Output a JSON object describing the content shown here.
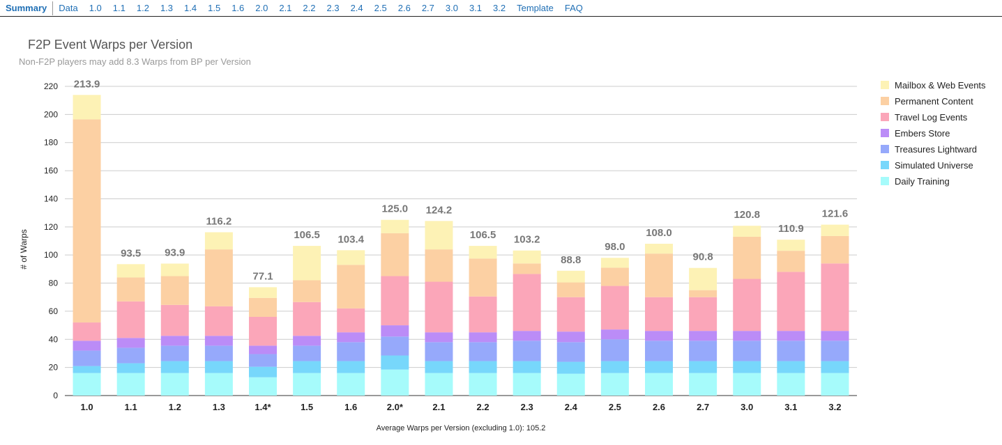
{
  "nav": {
    "tabs": [
      "Summary",
      "Data",
      "1.0",
      "1.1",
      "1.2",
      "1.3",
      "1.4",
      "1.5",
      "1.6",
      "2.0",
      "2.1",
      "2.2",
      "2.3",
      "2.4",
      "2.5",
      "2.6",
      "2.7",
      "3.0",
      "3.1",
      "3.2",
      "Template",
      "FAQ"
    ],
    "active": "Summary"
  },
  "colors": {
    "Daily Training": "#a6fbfb",
    "Simulated Universe": "#77d7fb",
    "Treasures Lightward": "#96a9fb",
    "Embers Store": "#bb8cf7",
    "Travel Log Events": "#fba6b9",
    "Permanent Content": "#fcd0a3",
    "Mailbox & Web Events": "#fdf2b5"
  },
  "chart_data": {
    "type": "bar",
    "stacked": true,
    "title": "F2P Event Warps per Version",
    "subtitle": "Non-F2P players may add 8.3 Warps from BP per Version",
    "ylabel": "# of Warps",
    "xlabel": "",
    "ylim": [
      0,
      220
    ],
    "yticks": [
      0,
      20,
      40,
      60,
      80,
      100,
      120,
      140,
      160,
      180,
      200,
      220
    ],
    "grid": true,
    "legend_position": "right",
    "categories": [
      "1.0",
      "1.1",
      "1.2",
      "1.3",
      "1.4*",
      "1.5",
      "1.6",
      "2.0*",
      "2.1",
      "2.2",
      "2.3",
      "2.4",
      "2.5",
      "2.6",
      "2.7",
      "3.0",
      "3.1",
      "3.2"
    ],
    "totals": [
      "213.9",
      "93.5",
      "93.9",
      "116.2",
      "77.1",
      "106.5",
      "103.4",
      "125.0",
      "124.2",
      "106.5",
      "103.2",
      "88.8",
      "98.0",
      "108.0",
      "90.8",
      "120.8",
      "110.9",
      "121.6"
    ],
    "series": [
      {
        "name": "Daily Training",
        "values": [
          16,
          16,
          16,
          16,
          13,
          16,
          16,
          18.5,
          16,
          16,
          16,
          15.5,
          16,
          16,
          16,
          16,
          16,
          16
        ]
      },
      {
        "name": "Simulated Universe",
        "values": [
          5,
          7,
          8.5,
          8.5,
          7.5,
          8.5,
          8.5,
          10,
          8.5,
          8.5,
          8.5,
          8.5,
          8.5,
          8.5,
          8.5,
          8.5,
          8.5,
          8.5
        ]
      },
      {
        "name": "Treasures Lightward",
        "values": [
          11,
          11,
          11,
          11,
          9,
          11,
          13.5,
          13.5,
          13.5,
          13.5,
          14.5,
          14,
          15.5,
          14.5,
          14.5,
          14.5,
          14.5,
          14.5
        ]
      },
      {
        "name": "Embers Store",
        "values": [
          7,
          7,
          7,
          7,
          6,
          7,
          7,
          8,
          7,
          7,
          7,
          7.5,
          7,
          7,
          7,
          7,
          7,
          7
        ]
      },
      {
        "name": "Travel Log Events",
        "values": [
          13,
          26,
          22,
          21,
          20.5,
          24,
          17,
          35,
          36,
          25.5,
          40.5,
          24.5,
          31,
          24,
          24,
          37,
          42,
          48
        ]
      },
      {
        "name": "Permanent Content",
        "values": [
          144.5,
          17,
          20.5,
          40.5,
          13.5,
          15.5,
          31,
          30.5,
          23,
          27,
          7.5,
          10.5,
          13,
          31,
          5,
          30,
          15,
          19.5
        ]
      },
      {
        "name": "Mailbox & Web Events",
        "values": [
          17.4,
          9.5,
          8.9,
          12.2,
          7.6,
          24.5,
          10.4,
          9.5,
          20.2,
          9,
          9.2,
          8.3,
          7,
          7,
          15.8,
          7.8,
          7.9,
          8.1
        ]
      }
    ],
    "legend": [
      "Mailbox & Web Events",
      "Permanent Content",
      "Travel Log Events",
      "Embers Store",
      "Treasures Lightward",
      "Simulated Universe",
      "Daily Training"
    ],
    "footnote": "Average Warps per Version (excluding 1.0): 105.2"
  }
}
